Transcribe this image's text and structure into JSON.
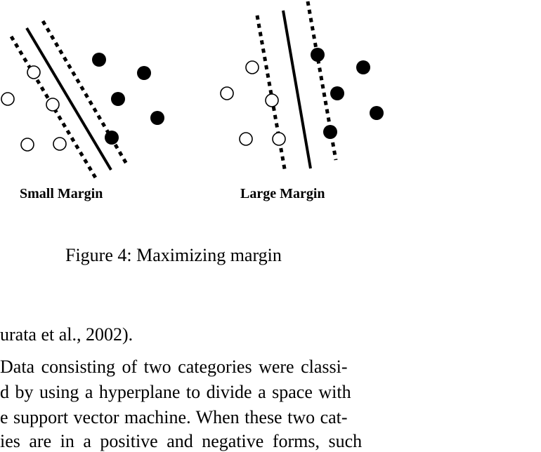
{
  "figure": {
    "panels": [
      {
        "label": "Small Margin"
      },
      {
        "label": "Large Margin"
      }
    ],
    "caption": "Figure 4: Maximizing margin"
  },
  "body": {
    "lines": [
      "urata et al., 2002).",
      "Data consisting of two categories were classi-",
      "d by using a hyperplane to divide a space with",
      "e support vector machine. When these two cat-",
      "ies are in a positive and negative forms, such"
    ]
  }
}
